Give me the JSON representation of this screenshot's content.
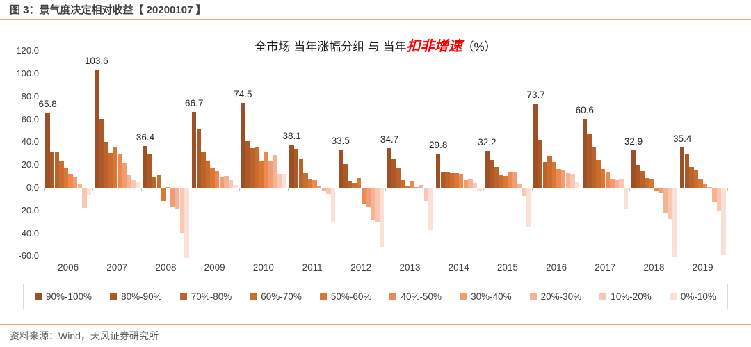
{
  "header": {
    "title": "图 3：景气度决定相对收益【 20200107 】"
  },
  "chart": {
    "title": {
      "prefix": "全市场 当年涨幅分组 与 当年",
      "highlight": "扣非增速",
      "suffix": "（%）"
    }
  },
  "chart_data": {
    "type": "bar",
    "title": "全市场 当年涨幅分组 与 当年扣非增速（%）",
    "categories": [
      "2006",
      "2007",
      "2008",
      "2009",
      "2010",
      "2011",
      "2012",
      "2013",
      "2014",
      "2015",
      "2016",
      "2017",
      "2018",
      "2019"
    ],
    "series": [
      {
        "name": "90%-100%",
        "color": "#9E4F26",
        "values": [
          65.8,
          103.6,
          36.4,
          66.7,
          74.5,
          38.1,
          33.5,
          34.7,
          29.8,
          32.2,
          73.7,
          60.6,
          32.9,
          35.4
        ]
      },
      {
        "name": "80%-90%",
        "color": "#AC5927",
        "values": [
          31,
          60.5,
          29,
          52,
          41,
          34,
          20.5,
          25.5,
          14,
          24.5,
          41.5,
          47.5,
          20,
          29
        ]
      },
      {
        "name": "70%-80%",
        "color": "#BB632A",
        "values": [
          32,
          40,
          9,
          31.5,
          35,
          25.5,
          6,
          17.5,
          13.5,
          18.5,
          22.5,
          35.5,
          14.5,
          18.5
        ]
      },
      {
        "name": "60%-70%",
        "color": "#CA6D2F",
        "values": [
          23.5,
          30.5,
          11,
          23.5,
          36,
          13,
          4.5,
          6.5,
          13,
          11,
          27.5,
          24.5,
          8.5,
          15.5
        ]
      },
      {
        "name": "50%-60%",
        "color": "#D97735",
        "values": [
          17.5,
          36,
          -11,
          17,
          23,
          8,
          8.5,
          2,
          13,
          10.5,
          22.5,
          16.5,
          8,
          7.5
        ]
      },
      {
        "name": "40%-50%",
        "color": "#ED8A4F",
        "values": [
          12,
          29.5,
          0.5,
          14.5,
          32,
          6.5,
          -14,
          6,
          12,
          14,
          16.5,
          14,
          -2.5,
          3
        ]
      },
      {
        "name": "30%-40%",
        "color": "#F19D73",
        "values": [
          9,
          22,
          -16,
          10,
          23,
          1.5,
          -16.5,
          0.5,
          6.5,
          14,
          15.5,
          7.5,
          -4,
          0.5
        ]
      },
      {
        "name": "20%-30%",
        "color": "#F5B294",
        "values": [
          3,
          11,
          -18,
          10.5,
          28.5,
          -2.5,
          -28,
          2.5,
          8,
          3,
          13,
          7,
          -21.5,
          -12
        ]
      },
      {
        "name": "10%-20%",
        "color": "#F8C8B3",
        "values": [
          -17,
          7,
          -39,
          6.5,
          12,
          -5,
          -29.5,
          -11,
          4,
          -7,
          12,
          7.5,
          -27,
          -20
        ]
      },
      {
        "name": "0%-10%",
        "color": "#FBE1D5",
        "values": [
          -6,
          5,
          -61,
          2.5,
          12.5,
          -29.5,
          -51,
          -36.5,
          -2,
          -34,
          5,
          -18.5,
          -60.5,
          -58
        ]
      }
    ],
    "top_labels": [
      "65.8",
      "103.6",
      "36.4",
      "66.7",
      "74.5",
      "38.1",
      "33.5",
      "34.7",
      "29.8",
      "32.2",
      "73.7",
      "60.6",
      "32.9",
      "35.4"
    ],
    "y_ticks": [
      "120.0",
      "100.0",
      "80.0",
      "60.0",
      "40.0",
      "20.0",
      "0.0",
      "-20.0",
      "-40.0",
      "-60.0"
    ],
    "ylim": [
      -60,
      120
    ],
    "xlabel": "",
    "ylabel": "",
    "grid": false,
    "legend_position": "bottom"
  },
  "footer": {
    "source": "资料来源：Wind，天风证券研究所"
  },
  "colors": {
    "accent_rule": "#F3A36B",
    "title_text": "#404040",
    "highlight_red": "#FE0000",
    "axis_line": "#D9D9D9",
    "source_text": "#595959"
  }
}
